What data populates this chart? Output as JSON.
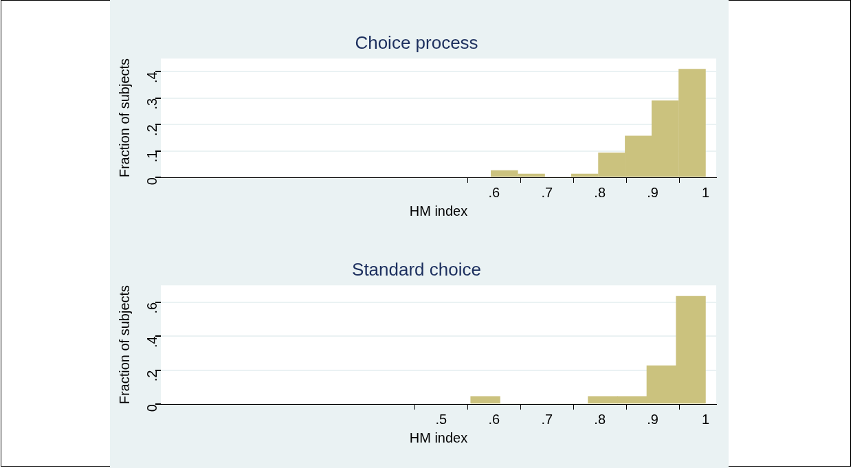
{
  "chart_data": [
    {
      "type": "histogram",
      "title": "Choice process",
      "xlabel": "HM index",
      "ylabel": "Fraction of subjects",
      "color": "#cbc27e",
      "bins": [
        0.594,
        0.645,
        0.696,
        0.746,
        0.797,
        0.848,
        0.898,
        0.949,
        1.0
      ],
      "values": [
        0.026,
        0.013,
        0,
        0.013,
        0.093,
        0.157,
        0.29,
        0.41
      ],
      "xlim": [
        -0.03,
        1.02
      ],
      "xticks": [
        {
          "value": 0.6,
          "label": ".6"
        },
        {
          "value": 0.7,
          "label": ".7"
        },
        {
          "value": 0.8,
          "label": ".8"
        },
        {
          "value": 0.9,
          "label": ".9"
        },
        1
      ],
      "ylim": [
        0,
        0.45
      ],
      "yticks": [
        0,
        {
          "value": 0.1,
          "label": ".1"
        },
        {
          "value": 0.2,
          "label": ".2"
        },
        {
          "value": 0.3,
          "label": ".3"
        },
        {
          "value": 0.4,
          "label": ".4"
        }
      ],
      "grid": "y"
    },
    {
      "type": "histogram",
      "title": "Standard choice",
      "xlabel": "HM index",
      "ylabel": "Fraction of subjects",
      "color": "#cbc27e",
      "bins": [
        0.556,
        0.611,
        0.667,
        0.722,
        0.778,
        0.833,
        0.889,
        0.944,
        1.0
      ],
      "values": [
        0.045,
        0,
        0,
        0,
        0.045,
        0.045,
        0.227,
        0.636
      ],
      "xlim": [
        -0.03,
        1.02
      ],
      "xticks": [
        {
          "value": 0.5,
          "label": ".5"
        },
        {
          "value": 0.6,
          "label": ".6"
        },
        {
          "value": 0.7,
          "label": ".7"
        },
        {
          "value": 0.8,
          "label": ".8"
        },
        {
          "value": 0.9,
          "label": ".9"
        },
        1
      ],
      "ylim": [
        0,
        0.7
      ],
      "yticks": [
        0,
        {
          "value": 0.2,
          "label": ".2"
        },
        {
          "value": 0.4,
          "label": ".4"
        },
        {
          "value": 0.6,
          "label": ".6"
        }
      ],
      "grid": "y"
    }
  ]
}
